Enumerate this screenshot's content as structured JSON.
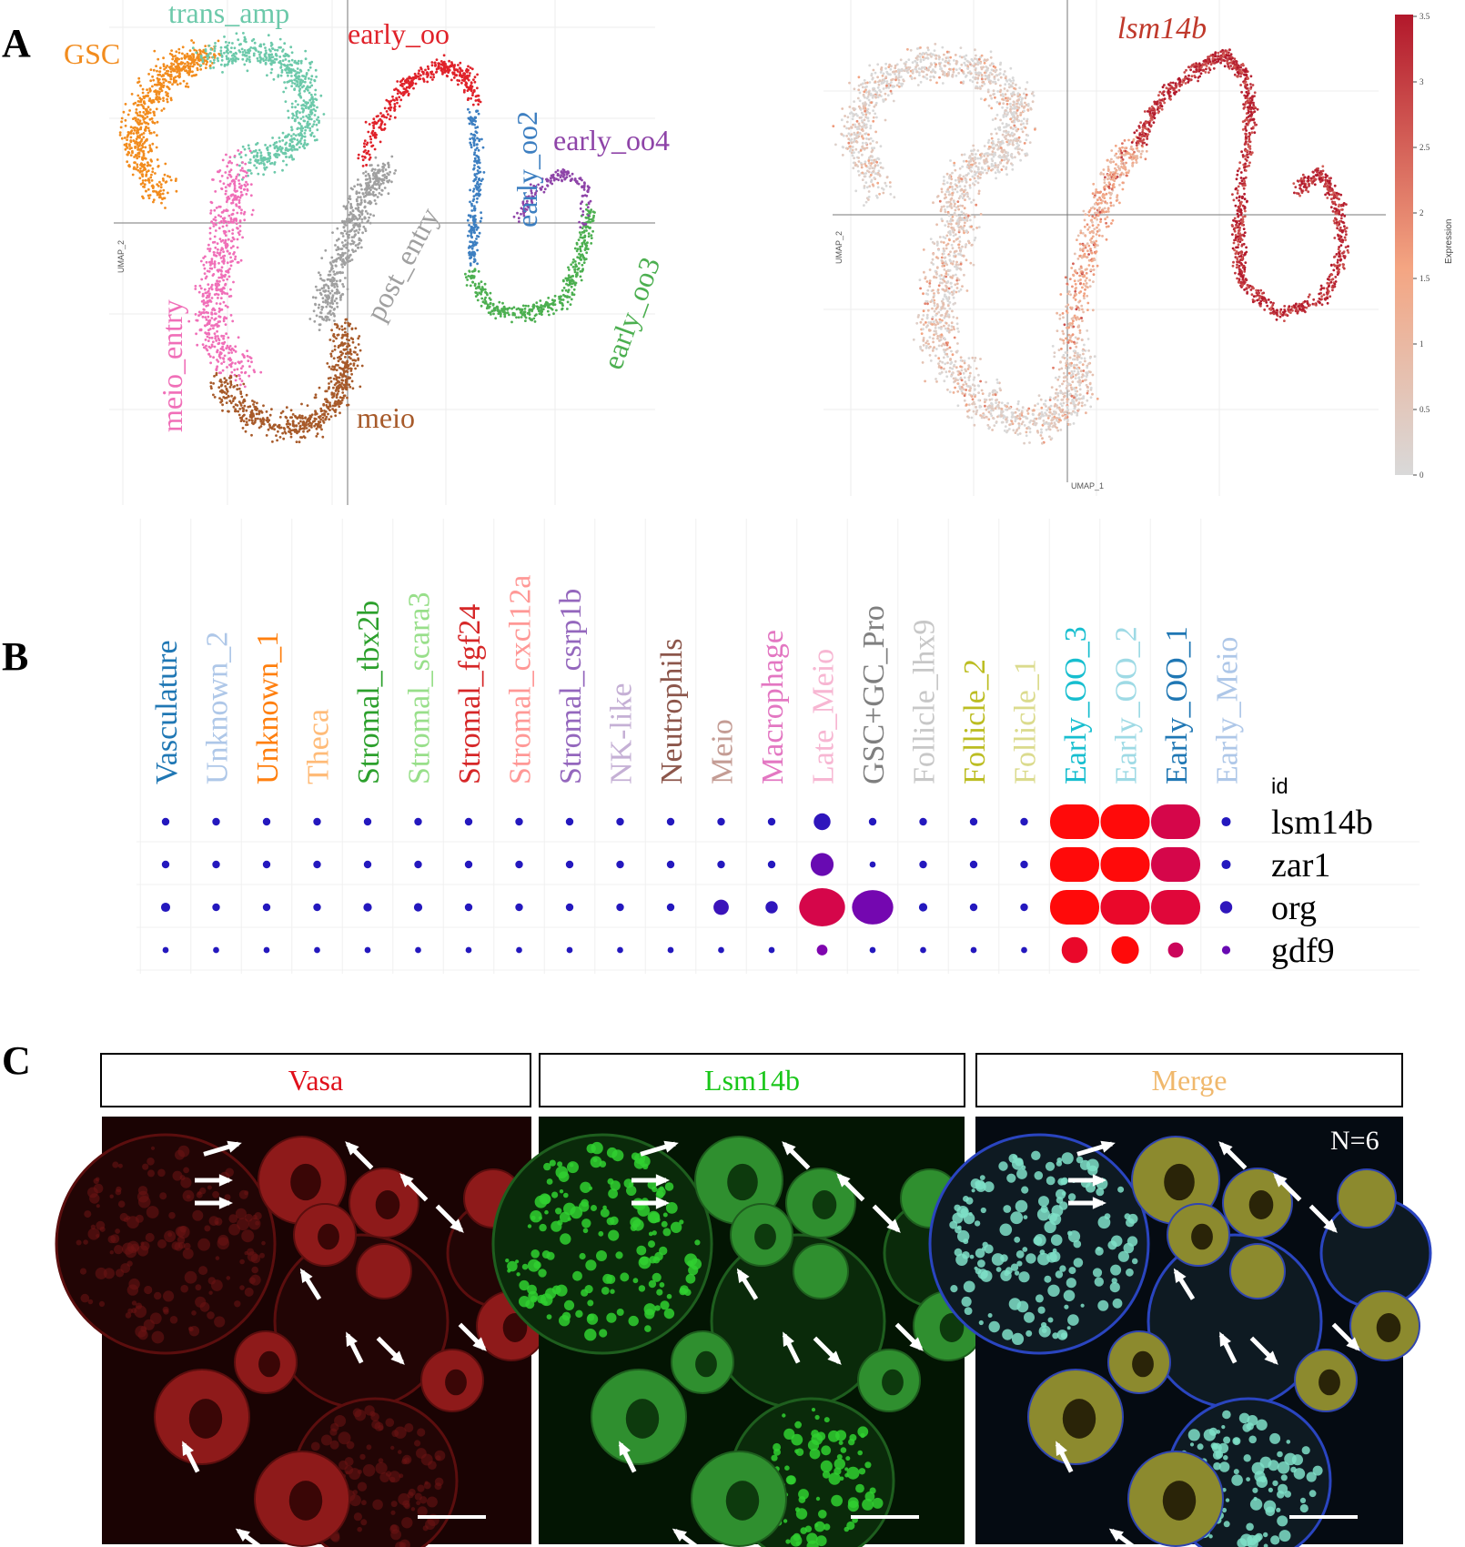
{
  "panels": {
    "a": {
      "letter": "A"
    },
    "b": {
      "letter": "B"
    },
    "c": {
      "letter": "C"
    }
  },
  "umap_left": {
    "ylabel": "UMAP_2",
    "clusters": [
      {
        "name": "GSC",
        "color": "#F28C1E"
      },
      {
        "name": "trans_amp",
        "color": "#6CC9AA"
      },
      {
        "name": "early_oo",
        "color": "#E0222A"
      },
      {
        "name": "early_oo2",
        "color": "#3D7FC1"
      },
      {
        "name": "early_oo4",
        "color": "#8E44A8"
      },
      {
        "name": "post_entry",
        "color": "#A0A0A0"
      },
      {
        "name": "early_oo3",
        "color": "#4CAF50"
      },
      {
        "name": "meio_entry",
        "color": "#F06FB8"
      },
      {
        "name": "meio",
        "color": "#A75A2A"
      }
    ]
  },
  "umap_right": {
    "gene": "lsm14b",
    "xlabel": "UMAP_1",
    "ylabel": "UMAP_2",
    "legend_title": "Expression",
    "legend_ticks": [
      "3.5",
      "3",
      "2.5",
      "2",
      "1.5",
      "1",
      "0.5",
      "0"
    ],
    "colors": {
      "low": "#D9D9D9",
      "mid": "#F4A582",
      "high": "#B2182B"
    }
  },
  "dotplot": {
    "id_label": "id",
    "columns": [
      {
        "name": "Vasculature",
        "color": "#1F77B4"
      },
      {
        "name": "Unknown_2",
        "color": "#AEC7E8"
      },
      {
        "name": "Unknown_1",
        "color": "#FF7F0E"
      },
      {
        "name": "Theca",
        "color": "#FFBB78"
      },
      {
        "name": "Stromal_tbx2b",
        "color": "#2CA02C"
      },
      {
        "name": "Stromal_scara3",
        "color": "#98DF8A"
      },
      {
        "name": "Stromal_fgf24",
        "color": "#D62728"
      },
      {
        "name": "Stromal_cxcl12a",
        "color": "#FF9896"
      },
      {
        "name": "Stromal_csrp1b",
        "color": "#9467BD"
      },
      {
        "name": "NK-like",
        "color": "#C5B0D5"
      },
      {
        "name": "Neutrophils",
        "color": "#8C564B"
      },
      {
        "name": "Meio",
        "color": "#C49C94"
      },
      {
        "name": "Macrophage",
        "color": "#E377C2"
      },
      {
        "name": "Late_Meio",
        "color": "#F7B6D2"
      },
      {
        "name": "GSC+GC_Pro",
        "color": "#7F7F7F"
      },
      {
        "name": "Follicle_lhx9",
        "color": "#C7C7C7"
      },
      {
        "name": "Follicle_2",
        "color": "#BCBD22"
      },
      {
        "name": "Follicle_1",
        "color": "#DBDB8D"
      },
      {
        "name": "Early_OO_3",
        "color": "#17BECF"
      },
      {
        "name": "Early_OO_2",
        "color": "#9EDAE5"
      },
      {
        "name": "Early_OO_1",
        "color": "#1F77B4"
      },
      {
        "name": "Early_Meio",
        "color": "#AEC7E8"
      }
    ],
    "rows": [
      {
        "gene": "lsm14b",
        "size": [
          1,
          1,
          1,
          1,
          1,
          1,
          1,
          1,
          1,
          1,
          1,
          1,
          1,
          2.2,
          1,
          1,
          1,
          1,
          6,
          6,
          6,
          1.2
        ],
        "level": [
          0,
          0,
          0,
          0,
          0,
          0,
          0,
          0,
          0,
          0,
          0,
          0,
          0,
          0.05,
          0,
          0,
          0,
          0,
          1,
          1,
          0.8,
          0
        ]
      },
      {
        "gene": "zar1",
        "size": [
          1,
          1,
          1,
          1,
          1,
          1,
          1,
          1,
          1,
          1,
          1,
          1,
          1,
          3,
          0.8,
          1,
          1,
          1,
          6,
          6,
          6,
          1.2
        ],
        "level": [
          0,
          0,
          0,
          0,
          0,
          0,
          0,
          0,
          0,
          0,
          0,
          0,
          0,
          0.3,
          0,
          0,
          0,
          0,
          1,
          1,
          0.8,
          0
        ]
      },
      {
        "gene": "org",
        "size": [
          1.2,
          1,
          1,
          1,
          1.1,
          1.1,
          1,
          1,
          1,
          1,
          1,
          2,
          1.6,
          5,
          4.5,
          1.1,
          1,
          1,
          6,
          6,
          6,
          1.6
        ],
        "level": [
          0,
          0,
          0,
          0,
          0,
          0,
          0,
          0,
          0,
          0,
          0,
          0.1,
          0.05,
          0.8,
          0.35,
          0,
          0,
          0,
          1,
          0.9,
          0.85,
          0.05
        ],
        "wide": [
          0,
          0,
          0,
          0,
          0,
          0,
          0,
          0,
          0,
          0,
          0,
          0,
          0,
          1,
          1,
          0,
          0,
          0,
          1,
          1,
          1,
          0
        ]
      },
      {
        "gene": "gdf9",
        "size": [
          0.8,
          0.8,
          0.8,
          0.8,
          0.8,
          0.8,
          0.8,
          0.8,
          0.8,
          0.8,
          0.8,
          0.8,
          0.8,
          1.4,
          0.8,
          0.8,
          0.8,
          0.8,
          3.4,
          3.6,
          2,
          1.1
        ],
        "level": [
          0,
          0,
          0,
          0,
          0,
          0,
          0,
          0,
          0,
          0,
          0,
          0,
          0,
          0.4,
          0,
          0,
          0,
          0,
          0.9,
          1,
          0.75,
          0.3
        ]
      }
    ]
  },
  "microscopy": {
    "panels": [
      {
        "title": "Vasa",
        "color": "#E0101B",
        "kind": "red"
      },
      {
        "title": "Lsm14b",
        "color": "#19C619",
        "kind": "green"
      },
      {
        "title": "Merge",
        "color": "#F5B86A",
        "kind": "merge"
      }
    ],
    "n_label": "N=6"
  }
}
